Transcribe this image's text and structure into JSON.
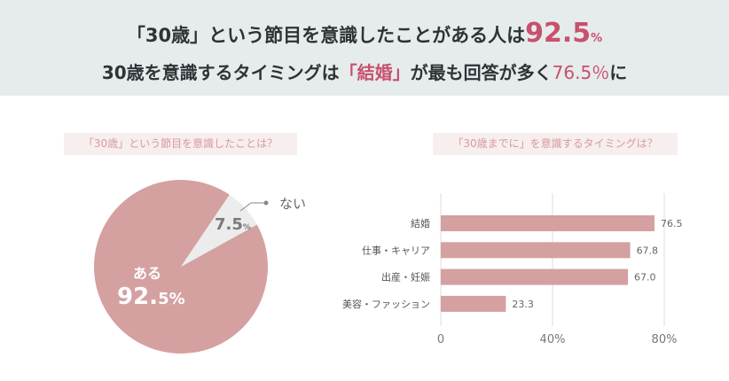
{
  "header": {
    "line1_prefix": "「30歳」という節目を意識したことがある人は",
    "line1_value": "92.5",
    "line1_unit": "%",
    "line2_prefix": "30歳を意識するタイミングは",
    "line2_highlight": "「結婚」",
    "line2_mid": "が最も回答が多く",
    "line2_value": "76.5％",
    "line2_suffix": "に"
  },
  "chart_data": [
    {
      "type": "pie",
      "title": "「30歳」という節目を意識したことは？",
      "slices": [
        {
          "label": "ある",
          "value": 92.5,
          "value_text": "92.5",
          "unit": "%",
          "color": "#d5a0a0"
        },
        {
          "label": "ない",
          "value": 7.5,
          "value_text": "7.5",
          "unit": "%",
          "color": "#ececec"
        }
      ]
    },
    {
      "type": "bar",
      "orientation": "horizontal",
      "title": "「30歳までに」を意識するタイミングは？",
      "categories": [
        "結婚",
        "仕事・キャリア",
        "出産・妊娠",
        "美容・ファッション"
      ],
      "values": [
        76.5,
        67.8,
        67.0,
        23.3
      ],
      "value_labels": [
        "76.5",
        "67.8",
        "67.0",
        "23.3"
      ],
      "xlim": [
        0,
        80
      ],
      "xticks": [
        "0",
        "40%",
        "80%"
      ],
      "xtick_values": [
        0,
        40,
        80
      ],
      "grid": true,
      "bar_color": "#d5a0a0"
    }
  ]
}
